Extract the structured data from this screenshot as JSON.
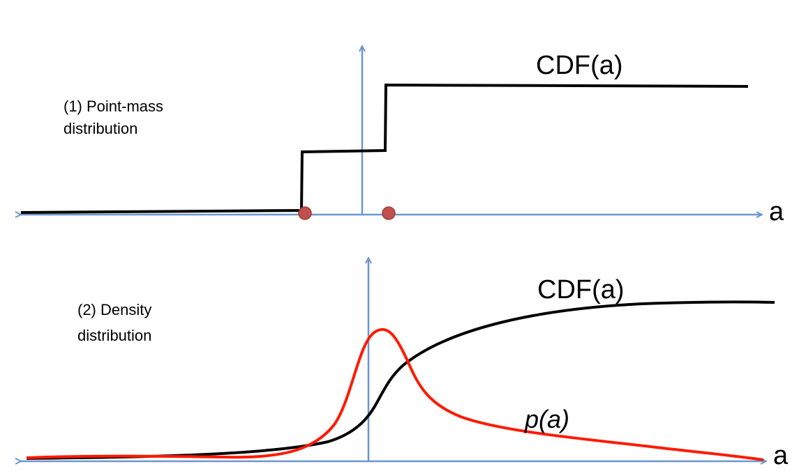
{
  "panel1": {
    "label_line1": "(1) Point-mass",
    "label_line2": "distribution",
    "cdf_label": "CDF(a)",
    "axis_label": "a"
  },
  "panel2": {
    "label_line1": "(2) Density",
    "label_line2": "distribution",
    "cdf_label": "CDF(a)",
    "pdf_label": "p(a)",
    "axis_label": "a"
  },
  "colors": {
    "axis": "#6b96cc",
    "cdf": "#000000",
    "pdf": "#ff1a00",
    "point_mass": "#c0504d"
  }
}
